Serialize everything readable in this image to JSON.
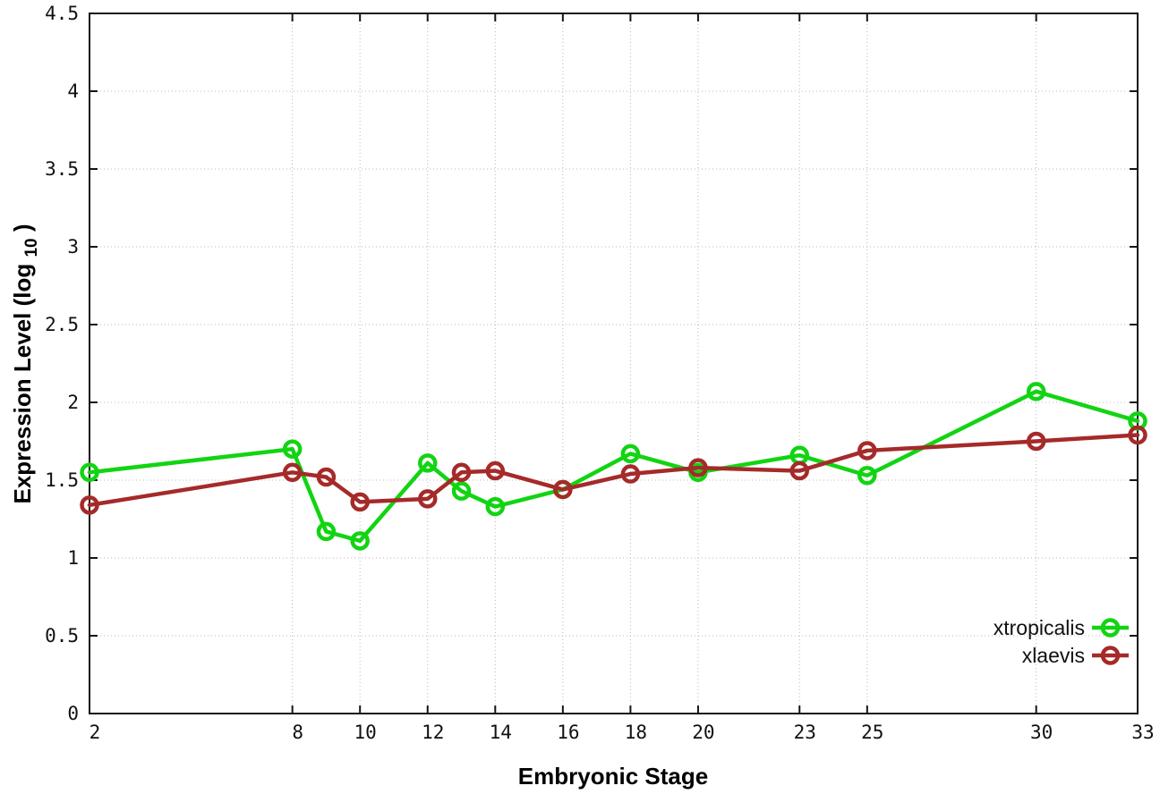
{
  "chart_data": {
    "type": "line",
    "title": "",
    "xlabel": "Embryonic Stage",
    "ylabel": "Expression Level (log10)",
    "ylabel_parts": {
      "pre": "Expression Level (log",
      "sub": "10",
      "post": ")"
    },
    "x": [
      2,
      8,
      9,
      10,
      12,
      13,
      14,
      16,
      18,
      20,
      23,
      25,
      30,
      33
    ],
    "xlim": [
      2,
      33
    ],
    "ylim": [
      0,
      4.5
    ],
    "x_tick_values": [
      2,
      8,
      10,
      12,
      14,
      16,
      18,
      20,
      23,
      25,
      30,
      33
    ],
    "x_tick_labels": [
      "2",
      "8",
      "10",
      "12",
      "14",
      "16",
      "18",
      "20",
      "23",
      "25",
      "30",
      "33"
    ],
    "y_tick_values": [
      0,
      0.5,
      1,
      1.5,
      2,
      2.5,
      3,
      3.5,
      4,
      4.5
    ],
    "y_tick_labels": [
      "0",
      "0.5",
      "1",
      "1.5",
      "2",
      "2.5",
      "3",
      "3.5",
      "4",
      "4.5"
    ],
    "grid": true,
    "legend_position": "inside-bottom-right",
    "series": [
      {
        "name": "xtropicalis",
        "color": "#12d412",
        "values": [
          1.55,
          1.7,
          1.17,
          1.11,
          1.61,
          1.43,
          1.33,
          1.44,
          1.67,
          1.55,
          1.66,
          1.53,
          2.07,
          1.88
        ]
      },
      {
        "name": "xlaevis",
        "color": "#a52a2a",
        "values": [
          1.34,
          1.55,
          1.52,
          1.36,
          1.38,
          1.55,
          1.56,
          1.44,
          1.54,
          1.58,
          1.56,
          1.69,
          1.75,
          1.79
        ]
      }
    ],
    "colors": {
      "background": "#ffffff",
      "border": "#141414",
      "grid": "#b8b8b8",
      "text": "#111111"
    }
  }
}
